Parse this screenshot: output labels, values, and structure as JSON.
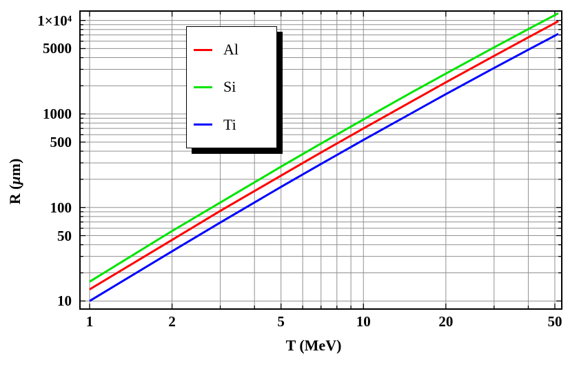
{
  "chart_data": {
    "type": "line",
    "title": "",
    "xlabel": "T (MeV)",
    "ylabel": "R (μm)",
    "ylabel_parts": {
      "pre": "R (",
      "mu": "μ",
      "post": "m)"
    },
    "x_scale": "log",
    "y_scale": "log",
    "xlim": [
      0.922,
      53
    ],
    "ylim": [
      8.2,
      12600
    ],
    "grid": true,
    "legend_position": "upper-left-inside",
    "x": [
      1,
      2,
      3,
      5,
      7,
      10,
      15,
      20,
      30,
      40,
      50
    ],
    "series": [
      {
        "name": "Al",
        "color": "#ff0000",
        "values": [
          13.3,
          45,
          92,
          219,
          387,
          700,
          1360,
          2180,
          4170,
          6590,
          9350
        ]
      },
      {
        "name": "Si",
        "color": "#00e400",
        "values": [
          16.1,
          56,
          113,
          273,
          482,
          873,
          1700,
          2700,
          5150,
          8070,
          11400
        ]
      },
      {
        "name": "Ti",
        "color": "#0000ff",
        "values": [
          10,
          34,
          69,
          166,
          292,
          528,
          1020,
          1630,
          3100,
          4860,
          6860
        ]
      }
    ],
    "line_end_T": 51.5,
    "x_ticks": {
      "values": [
        1,
        2,
        5,
        10,
        20,
        50
      ],
      "labels": [
        "1",
        "2",
        "5",
        "10",
        "20",
        "50"
      ]
    },
    "y_ticks": {
      "values": [
        10,
        50,
        100,
        500,
        1000,
        5000,
        10000
      ],
      "labels": [
        "10",
        "50",
        "100",
        "500",
        "1000",
        "5000",
        "1×10⁴"
      ]
    },
    "x_gridlines": [
      1,
      2,
      3,
      4,
      5,
      6,
      7,
      8,
      9,
      10,
      20,
      30,
      40,
      50
    ],
    "y_gridlines": [
      10,
      20,
      30,
      40,
      50,
      60,
      70,
      80,
      90,
      100,
      200,
      300,
      400,
      500,
      600,
      700,
      800,
      900,
      1000,
      2000,
      3000,
      4000,
      5000,
      6000,
      7000,
      8000,
      9000,
      10000
    ]
  },
  "colors": {
    "background": "#ffffff",
    "frame": "#000000",
    "grid": "#909090",
    "tick": "#000000",
    "legend_border": "#000000",
    "legend_shadow": "#000000"
  }
}
